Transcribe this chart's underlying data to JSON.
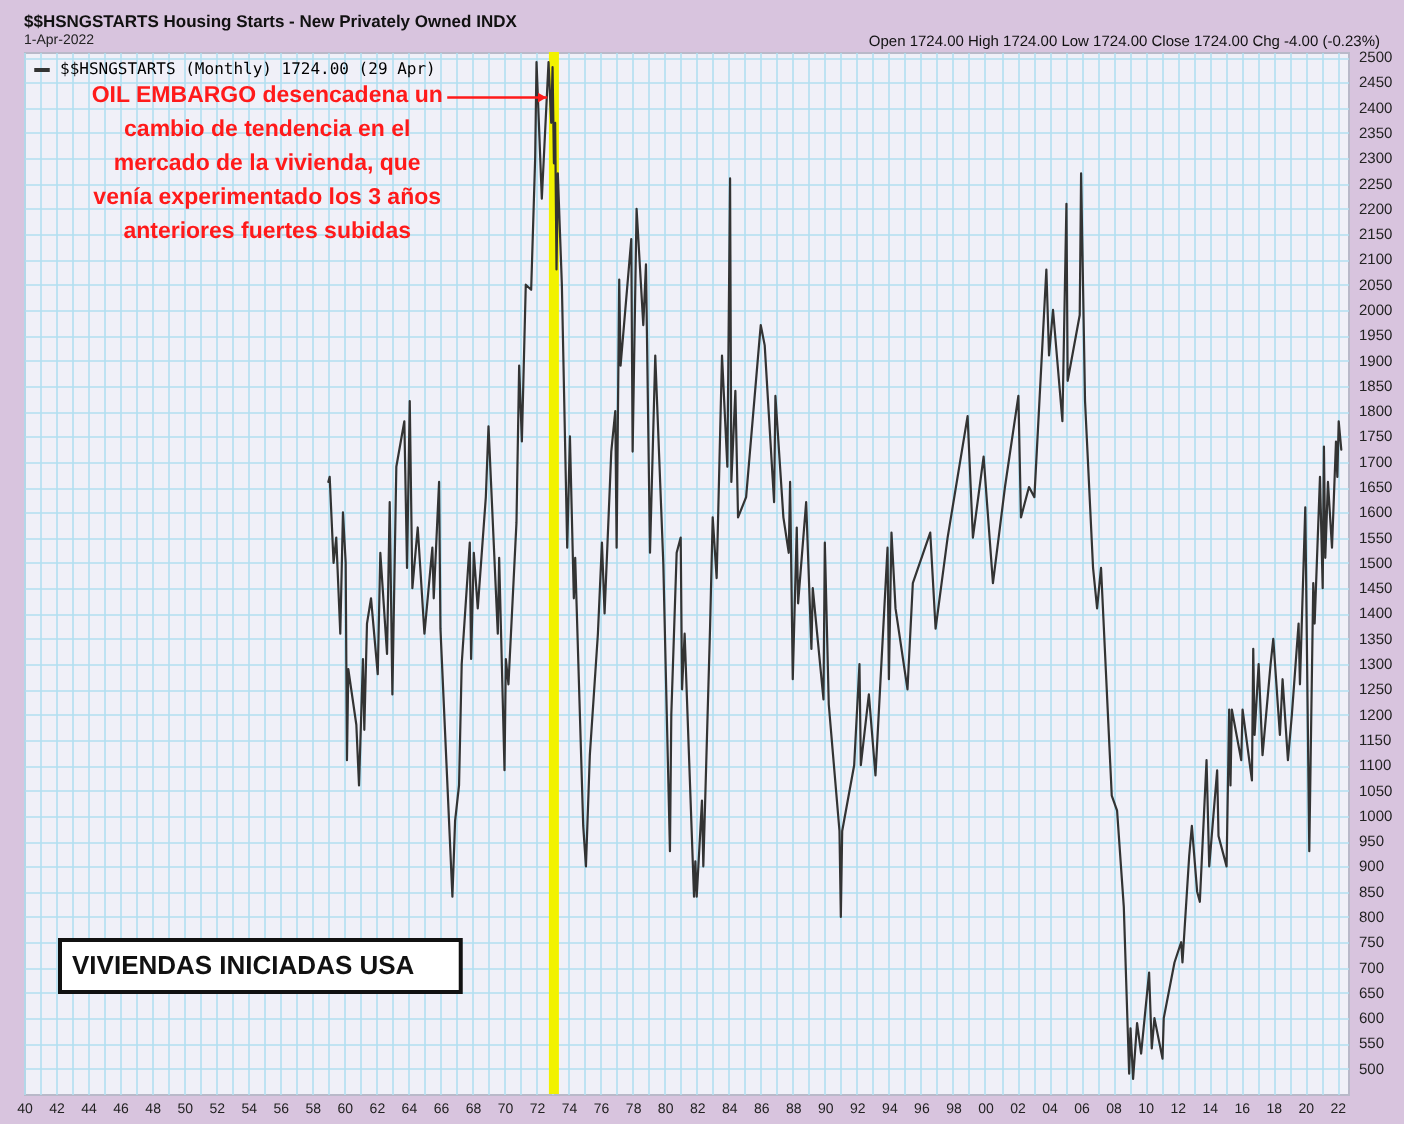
{
  "chart_data": {
    "type": "line",
    "title": "$$HSNGSTARTS Housing Starts - New Privately Owned INDX",
    "subtitle": "1-Apr-2022",
    "x": [
      "1959-01",
      "1959-02",
      "1959-05",
      "1959-07",
      "1959-10",
      "1959-12",
      "1960-02",
      "1960-03",
      "1960-04",
      "1960-10",
      "1960-12",
      "1961-03",
      "1961-04",
      "1961-06",
      "1961-09",
      "1962-02",
      "1962-04",
      "1962-09",
      "1962-11",
      "1963-01",
      "1963-04",
      "1963-10",
      "1963-12",
      "1964-02",
      "1964-04",
      "1964-08",
      "1965-01",
      "1965-07",
      "1965-08",
      "1965-12",
      "1966-01",
      "1966-10",
      "1966-12",
      "1967-03",
      "1967-05",
      "1967-11",
      "1967-12",
      "1968-02",
      "1968-05",
      "1968-11",
      "1969-01",
      "1969-08",
      "1969-09",
      "1970-01",
      "1970-02",
      "1970-04",
      "1970-10",
      "1970-12",
      "1971-02",
      "1971-05",
      "1971-09",
      "1971-12",
      "1972-01",
      "1972-05",
      "1972-10",
      "1972-12",
      "1973-01",
      "1973-02",
      "1973-03",
      "1973-04",
      "1973-05",
      "1973-08",
      "1973-12",
      "1974-02",
      "1974-05",
      "1974-06",
      "1974-12",
      "1975-02",
      "1975-05",
      "1975-11",
      "1976-02",
      "1976-04",
      "1976-09",
      "1976-12",
      "1977-01",
      "1977-03",
      "1977-04",
      "1977-12",
      "1978-01",
      "1978-04",
      "1978-09",
      "1978-11",
      "1979-02",
      "1979-06",
      "1979-12",
      "1980-05",
      "1980-06",
      "1980-10",
      "1981-01",
      "1981-02",
      "1981-04",
      "1981-11",
      "1981-12",
      "1982-01",
      "1982-05",
      "1982-06",
      "1982-11",
      "1983-01",
      "1983-04",
      "1983-08",
      "1983-12",
      "1984-02",
      "1984-03",
      "1984-06",
      "1984-08",
      "1985-02",
      "1985-12",
      "1986-01",
      "1986-04",
      "1986-11",
      "1986-12",
      "1987-06",
      "1987-10",
      "1987-11",
      "1988-01",
      "1988-04",
      "1988-05",
      "1988-11",
      "1989-03",
      "1989-04",
      "1989-12",
      "1990-01",
      "1990-04",
      "1990-12",
      "1991-01",
      "1991-02",
      "1991-11",
      "1992-03",
      "1992-04",
      "1992-10",
      "1993-03",
      "1993-12",
      "1994-01",
      "1994-03",
      "1994-06",
      "1995-03",
      "1995-07",
      "1996-08",
      "1996-12",
      "1997-09",
      "1998-12",
      "1999-04",
      "1999-12",
      "2000-07",
      "2001-04",
      "2002-02",
      "2002-04",
      "2002-10",
      "2003-02",
      "2003-11",
      "2004-01",
      "2004-04",
      "2004-11",
      "2005-02",
      "2005-03",
      "2005-12",
      "2006-01",
      "2006-04",
      "2006-10",
      "2007-01",
      "2007-04",
      "2007-12",
      "2008-04",
      "2008-09",
      "2009-01",
      "2009-02",
      "2009-04",
      "2009-07",
      "2009-10",
      "2010-04",
      "2010-06",
      "2010-08",
      "2011-02",
      "2011-03",
      "2011-11",
      "2012-04",
      "2012-05",
      "2012-10",
      "2012-12",
      "2013-04",
      "2013-06",
      "2013-11",
      "2014-01",
      "2014-07",
      "2014-08",
      "2015-02",
      "2015-04",
      "2015-05",
      "2015-06",
      "2016-01",
      "2016-02",
      "2016-09",
      "2016-10",
      "2016-11",
      "2017-02",
      "2017-05",
      "2017-11",
      "2018-01",
      "2018-06",
      "2018-08",
      "2018-12",
      "2019-03",
      "2019-08",
      "2019-09",
      "2020-01",
      "2020-04",
      "2020-07",
      "2020-08",
      "2020-12",
      "2021-02",
      "2021-03",
      "2021-04",
      "2021-06",
      "2021-09",
      "2021-12",
      "2022-01",
      "2022-02",
      "2022-04"
    ],
    "series": [
      {
        "name": "$$HSNGSTARTS (Monthly) 1724.00 (29 Apr)",
        "color": "#333333",
        "values": [
          1660,
          1670,
          1500,
          1550,
          1360,
          1600,
          1500,
          1110,
          1290,
          1180,
          1060,
          1310,
          1170,
          1380,
          1430,
          1280,
          1520,
          1320,
          1620,
          1240,
          1690,
          1780,
          1490,
          1820,
          1450,
          1570,
          1360,
          1530,
          1430,
          1660,
          1370,
          840,
          990,
          1060,
          1300,
          1540,
          1310,
          1520,
          1410,
          1630,
          1770,
          1360,
          1510,
          1090,
          1310,
          1260,
          1580,
          1890,
          1740,
          2050,
          2040,
          2300,
          2490,
          2220,
          2490,
          2370,
          2480,
          2290,
          2370,
          2080,
          2270,
          2050,
          1530,
          1750,
          1430,
          1510,
          980,
          900,
          1120,
          1360,
          1540,
          1400,
          1720,
          1800,
          1530,
          2060,
          1890,
          2140,
          1720,
          2200,
          1970,
          2090,
          1520,
          1910,
          1500,
          930,
          1200,
          1520,
          1550,
          1250,
          1360,
          840,
          910,
          840,
          1030,
          900,
          1370,
          1590,
          1470,
          1910,
          1690,
          2260,
          1660,
          1840,
          1590,
          1630,
          1940,
          1970,
          1930,
          1620,
          1830,
          1590,
          1520,
          1660,
          1270,
          1570,
          1420,
          1620,
          1330,
          1450,
          1230,
          1540,
          1220,
          970,
          800,
          970,
          1100,
          1300,
          1100,
          1240,
          1080,
          1530,
          1270,
          1560,
          1410,
          1250,
          1460,
          1560,
          1370,
          1550,
          1790,
          1550,
          1710,
          1460,
          1650,
          1830,
          1590,
          1650,
          1630,
          2080,
          1910,
          2000,
          1780,
          2210,
          1860,
          1990,
          2270,
          1820,
          1490,
          1410,
          1490,
          1040,
          1010,
          820,
          490,
          580,
          480,
          590,
          530,
          690,
          540,
          600,
          520,
          600,
          710,
          750,
          710,
          920,
          980,
          850,
          830,
          1110,
          900,
          1090,
          960,
          900,
          1210,
          1060,
          1210,
          1110,
          1210,
          1070,
          1330,
          1160,
          1300,
          1120,
          1300,
          1350,
          1160,
          1270,
          1110,
          1200,
          1380,
          1260,
          1610,
          930,
          1460,
          1380,
          1670,
          1450,
          1730,
          1510,
          1660,
          1530,
          1740,
          1670,
          1780,
          1724
        ]
      }
    ],
    "xlim": [
      "1940-01",
      "2022-09"
    ],
    "ylim": [
      450,
      2510
    ],
    "xticks": [
      {
        "value": "1940",
        "label": "40"
      },
      {
        "value": "1941",
        "label": null
      },
      {
        "value": "1942",
        "label": "42"
      },
      {
        "value": "1943",
        "label": null
      },
      {
        "value": "1944",
        "label": "44"
      },
      {
        "value": "1945",
        "label": null
      },
      {
        "value": "1946",
        "label": "46"
      },
      {
        "value": "1947",
        "label": null
      },
      {
        "value": "1948",
        "label": "48"
      },
      {
        "value": "1949",
        "label": null
      },
      {
        "value": "1950",
        "label": "50"
      },
      {
        "value": "1951",
        "label": null
      },
      {
        "value": "1952",
        "label": "52"
      },
      {
        "value": "1953",
        "label": null
      },
      {
        "value": "1954",
        "label": "54"
      },
      {
        "value": "1955",
        "label": null
      },
      {
        "value": "1956",
        "label": "56"
      },
      {
        "value": "1957",
        "label": null
      },
      {
        "value": "1958",
        "label": "58"
      },
      {
        "value": "1959",
        "label": null
      },
      {
        "value": "1960",
        "label": "60"
      },
      {
        "value": "1961",
        "label": null
      },
      {
        "value": "1962",
        "label": "62"
      },
      {
        "value": "1963",
        "label": null
      },
      {
        "value": "1964",
        "label": "64"
      },
      {
        "value": "1965",
        "label": null
      },
      {
        "value": "1966",
        "label": "66"
      },
      {
        "value": "1967",
        "label": null
      },
      {
        "value": "1968",
        "label": "68"
      },
      {
        "value": "1969",
        "label": null
      },
      {
        "value": "1970",
        "label": "70"
      },
      {
        "value": "1971",
        "label": null
      },
      {
        "value": "1972",
        "label": "72"
      },
      {
        "value": "1973",
        "label": null
      },
      {
        "value": "1974",
        "label": "74"
      },
      {
        "value": "1975",
        "label": null
      },
      {
        "value": "1976",
        "label": "76"
      },
      {
        "value": "1977",
        "label": null
      },
      {
        "value": "1978",
        "label": "78"
      },
      {
        "value": "1979",
        "label": null
      },
      {
        "value": "1980",
        "label": "80"
      },
      {
        "value": "1981",
        "label": null
      },
      {
        "value": "1982",
        "label": "82"
      },
      {
        "value": "1983",
        "label": null
      },
      {
        "value": "1984",
        "label": "84"
      },
      {
        "value": "1985",
        "label": null
      },
      {
        "value": "1986",
        "label": "86"
      },
      {
        "value": "1987",
        "label": null
      },
      {
        "value": "1988",
        "label": "88"
      },
      {
        "value": "1989",
        "label": null
      },
      {
        "value": "1990",
        "label": "90"
      },
      {
        "value": "1991",
        "label": null
      },
      {
        "value": "1992",
        "label": "92"
      },
      {
        "value": "1993",
        "label": null
      },
      {
        "value": "1994",
        "label": "94"
      },
      {
        "value": "1995",
        "label": null
      },
      {
        "value": "1996",
        "label": "96"
      },
      {
        "value": "1997",
        "label": null
      },
      {
        "value": "1998",
        "label": "98"
      },
      {
        "value": "1999",
        "label": null
      },
      {
        "value": "2000",
        "label": "00"
      },
      {
        "value": "2001",
        "label": null
      },
      {
        "value": "2002",
        "label": "02"
      },
      {
        "value": "2003",
        "label": null
      },
      {
        "value": "2004",
        "label": "04"
      },
      {
        "value": "2005",
        "label": null
      },
      {
        "value": "2006",
        "label": "06"
      },
      {
        "value": "2007",
        "label": null
      },
      {
        "value": "2008",
        "label": "08"
      },
      {
        "value": "2009",
        "label": null
      },
      {
        "value": "2010",
        "label": "10"
      },
      {
        "value": "2011",
        "label": null
      },
      {
        "value": "2012",
        "label": "12"
      },
      {
        "value": "2013",
        "label": null
      },
      {
        "value": "2014",
        "label": "14"
      },
      {
        "value": "2015",
        "label": null
      },
      {
        "value": "2016",
        "label": "16"
      },
      {
        "value": "2017",
        "label": null
      },
      {
        "value": "2018",
        "label": "18"
      },
      {
        "value": "2019",
        "label": null
      },
      {
        "value": "2020",
        "label": "20"
      },
      {
        "value": "2021",
        "label": null
      },
      {
        "value": "2022",
        "label": "22"
      }
    ],
    "yticks": [
      500,
      550,
      600,
      650,
      700,
      750,
      800,
      850,
      900,
      950,
      1000,
      1050,
      1100,
      1150,
      1200,
      1250,
      1300,
      1350,
      1400,
      1450,
      1500,
      1550,
      1600,
      1650,
      1700,
      1750,
      1800,
      1850,
      1900,
      1950,
      2000,
      2050,
      2100,
      2150,
      2200,
      2250,
      2300,
      2350,
      2400,
      2450,
      2500
    ],
    "grid": true,
    "legend": "top left",
    "ref_lines": [
      {
        "axis": "x",
        "value": "1973-02",
        "color": "#f2f200"
      }
    ],
    "annotations": [
      "Open 1724.00 High 1724.00 Low 1724.00 Close 1724.00 Chg -4.00 (-0.23%)",
      {
        "text": "OIL EMBARGO desencadena un cambio de tendencia en el mercado de la vivienda, que venía experimentado los 3 años anteriores fuertes subidas",
        "x": "1972-09",
        "y": 2420
      },
      "VIVIENDAS INICIADAS USA"
    ]
  }
}
